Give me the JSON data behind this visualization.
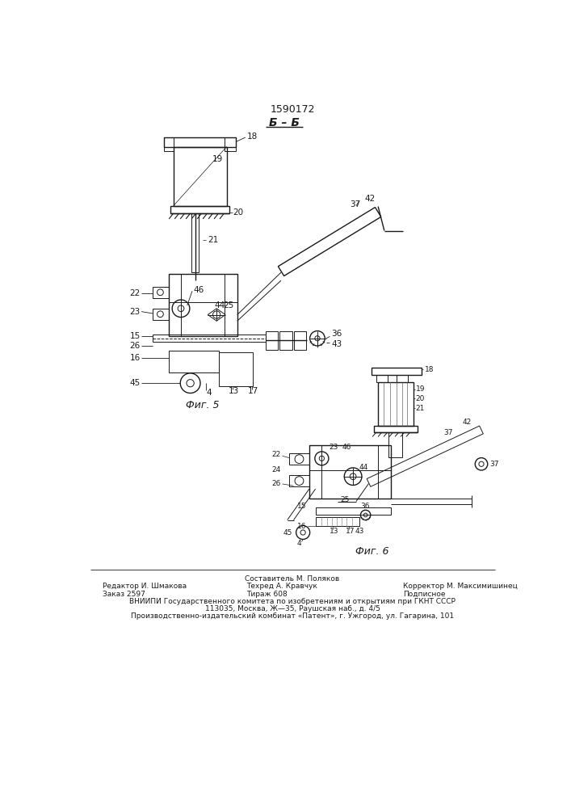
{
  "title": "1590172",
  "section_label": "Б – Б",
  "fig5_label": "Фиг. 5",
  "fig6_label": "Фиг. 6",
  "footer_line0_center": "Составитель М. Поляков",
  "footer_line1_left": "Редактор И. Шмакова",
  "footer_line1_center": "Техред А. Кравчук",
  "footer_line1_right": "Корректор М. Максимишинец",
  "footer_line2_left": "Заказ 2597",
  "footer_line2_center": "Тираж 608",
  "footer_line2_right": "Подписное",
  "footer_vniipi": "ВНИИПИ Государственного комитета по изобретениям и открытиям при ГКНТ СССР",
  "footer_address1": "113035, Москва, Ж—35, Раушская наб., д. 4/5",
  "footer_address2": "Производственно-издательский комбинат «Патент», г. Ужгород, ул. Гагарина, 101",
  "bg_color": "#ffffff",
  "line_color": "#1a1a1a"
}
